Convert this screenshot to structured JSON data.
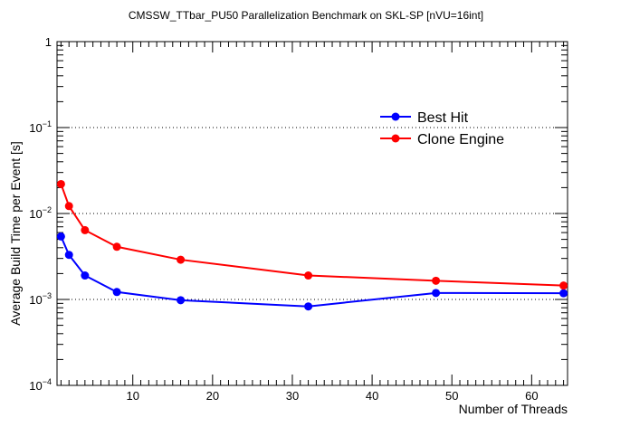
{
  "chart_data": {
    "type": "line",
    "title": "CMSSW_TTbar_PU50 Parallelization Benchmark on SKL-SP [nVU=16int]",
    "xlabel": "Number of Threads",
    "ylabel": "Average Build Time per Event [s]",
    "xlim": [
      0.5,
      64.5
    ],
    "ylim": [
      0.0001,
      1
    ],
    "yscale": "log",
    "x_ticks": [
      10,
      20,
      30,
      40,
      50,
      60
    ],
    "y_ticks": [
      {
        "value": 0.0001,
        "base": "10",
        "exp": "−4"
      },
      {
        "value": 0.001,
        "base": "10",
        "exp": "−3"
      },
      {
        "value": 0.01,
        "base": "10",
        "exp": "−2"
      },
      {
        "value": 0.1,
        "base": "10",
        "exp": "−1"
      },
      {
        "value": 1,
        "base": "1",
        "exp": ""
      }
    ],
    "grid_y": "dotted",
    "legend_position": "top-right",
    "series": [
      {
        "name": "Best Hit",
        "color": "#0000ff",
        "x": [
          1,
          2,
          4,
          8,
          16,
          32,
          48,
          64
        ],
        "values": [
          0.0054,
          0.0033,
          0.0019,
          0.00122,
          0.00098,
          0.00083,
          0.00119,
          0.00118
        ]
      },
      {
        "name": "Clone Engine",
        "color": "#ff0000",
        "x": [
          1,
          2,
          4,
          8,
          16,
          32,
          48,
          64
        ],
        "values": [
          0.022,
          0.0122,
          0.0064,
          0.0041,
          0.0029,
          0.0019,
          0.00165,
          0.00145
        ]
      }
    ]
  }
}
